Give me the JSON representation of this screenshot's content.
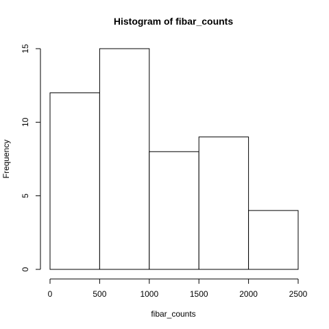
{
  "chart_data": {
    "type": "bar",
    "title": "Histogram of fibar_counts",
    "xlabel": "fibar_counts",
    "ylabel": "Frequency",
    "bins": [
      [
        0,
        500
      ],
      [
        500,
        1000
      ],
      [
        1000,
        1500
      ],
      [
        1500,
        2000
      ],
      [
        2000,
        2500
      ]
    ],
    "values": [
      12,
      15,
      8,
      9,
      4
    ],
    "xlim": [
      0,
      2500
    ],
    "ylim": [
      0,
      15
    ],
    "xticks": [
      0,
      500,
      1000,
      1500,
      2000,
      2500
    ],
    "yticks": [
      0,
      5,
      10,
      15
    ],
    "grid": false
  }
}
